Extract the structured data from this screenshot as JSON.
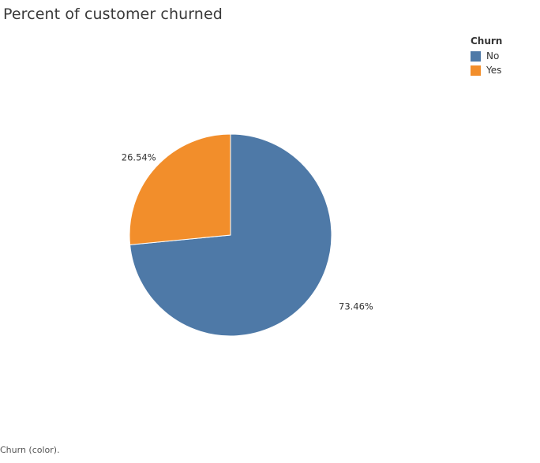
{
  "chart_data": {
    "type": "pie",
    "title": "Percent of customer churned",
    "legend": {
      "title": "Churn",
      "placement": "top-right"
    },
    "slices": [
      {
        "label": "No",
        "value": 73.46,
        "display": "73.46%",
        "color": "#4e79a7"
      },
      {
        "label": "Yes",
        "value": 26.54,
        "display": "26.54%",
        "color": "#f28e2b"
      }
    ]
  },
  "footnote": "Churn (color)."
}
